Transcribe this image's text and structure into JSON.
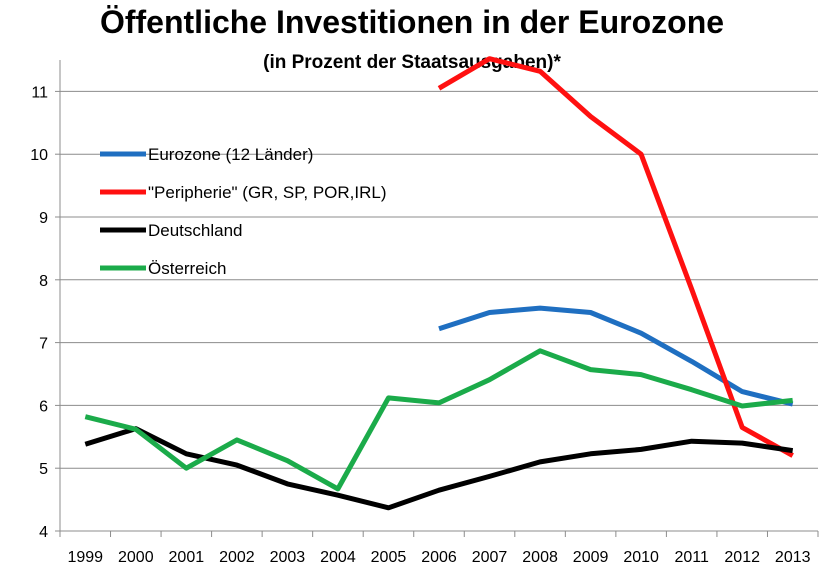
{
  "chart_data": {
    "type": "line",
    "title": "Öffentliche Investitionen in der Eurozone",
    "subtitle": "(in Prozent der Staatsausgaben)*",
    "xlabel": "",
    "ylabel": "",
    "ylim": [
      4,
      11.5
    ],
    "yticks": [
      4,
      5,
      6,
      7,
      8,
      9,
      10,
      11
    ],
    "x": [
      "1999",
      "2000",
      "2001",
      "2002",
      "2003",
      "2004",
      "2005",
      "2006",
      "2007",
      "2008",
      "2009",
      "2010",
      "2011",
      "2012",
      "2013"
    ],
    "legend_position": "top-left",
    "series": [
      {
        "name": "Eurozone (12 Länder)",
        "color": "#1f6fc1",
        "values": [
          null,
          null,
          null,
          null,
          null,
          null,
          null,
          7.22,
          7.48,
          7.55,
          7.48,
          7.15,
          6.7,
          6.22,
          6.02
        ]
      },
      {
        "name": "\"Peripherie\" (GR, SP, POR,IRL)",
        "color": "#ff1010",
        "values": [
          null,
          null,
          null,
          null,
          null,
          null,
          null,
          11.05,
          11.52,
          11.32,
          10.6,
          10.0,
          7.85,
          5.65,
          5.2
        ]
      },
      {
        "name": "Deutschland",
        "color": "#000000",
        "values": [
          5.38,
          5.63,
          5.23,
          5.05,
          4.75,
          4.57,
          4.37,
          4.65,
          4.87,
          5.1,
          5.23,
          5.3,
          5.43,
          5.4,
          5.28
        ]
      },
      {
        "name": "Österreich",
        "color": "#1bab4a",
        "values": [
          5.82,
          5.62,
          5.0,
          5.45,
          5.12,
          4.67,
          6.12,
          6.04,
          6.41,
          6.87,
          6.57,
          6.49,
          6.25,
          5.99,
          6.08
        ]
      }
    ]
  }
}
